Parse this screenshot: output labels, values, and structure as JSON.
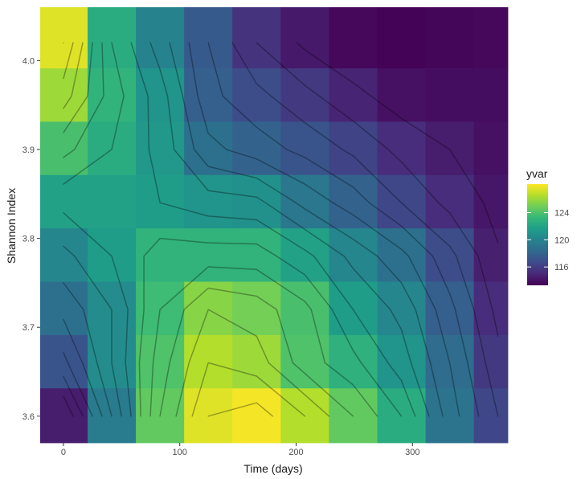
{
  "chart_data": {
    "type": "heatmap",
    "xlabel": "Time (days)",
    "ylabel": "Shannon Index",
    "x_ticks": [
      0,
      100,
      200,
      300
    ],
    "y_ticks": [
      3.6,
      3.7,
      3.8,
      3.9,
      4.0
    ],
    "xlim": [
      -20,
      382
    ],
    "ylim": [
      3.57,
      4.06
    ],
    "x_centers": [
      0,
      41.5,
      83,
      124.5,
      166,
      207.5,
      249,
      290.5,
      332,
      373.5
    ],
    "y_centers": [
      3.6,
      3.66,
      3.72,
      3.78,
      3.84,
      3.9,
      3.96,
      4.02
    ],
    "x_bin_width": 41.5,
    "y_bin_height": 0.0625,
    "z_rows_top_to_bottom": [
      [
        127.5,
        122.5,
        120.0,
        117.5,
        115.5,
        114.3,
        113.6,
        113.4,
        113.5,
        113.6
      ],
      [
        126.0,
        123.0,
        121.0,
        117.8,
        116.8,
        115.8,
        114.8,
        114.0,
        113.8,
        113.8
      ],
      [
        123.8,
        122.5,
        121.2,
        118.8,
        118.0,
        117.2,
        116.3,
        115.2,
        114.5,
        114.0
      ],
      [
        121.8,
        121.8,
        121.5,
        121.0,
        120.8,
        119.2,
        118.0,
        116.5,
        115.2,
        114.2
      ],
      [
        120.2,
        121.5,
        123.0,
        123.0,
        123.0,
        121.8,
        120.2,
        118.8,
        116.8,
        114.6
      ],
      [
        118.8,
        120.5,
        123.5,
        125.5,
        125.0,
        123.8,
        121.5,
        120.2,
        117.8,
        115.2
      ],
      [
        117.2,
        120.5,
        124.0,
        126.5,
        126.0,
        124.0,
        122.8,
        121.0,
        118.5,
        115.8
      ],
      [
        114.5,
        119.5,
        124.5,
        127.5,
        128.0,
        126.5,
        124.5,
        122.5,
        119.0,
        116.5
      ]
    ],
    "colorbar": {
      "title": "yvar",
      "ticks": [
        116,
        120,
        124
      ],
      "min": 113.3,
      "max": 128.2
    },
    "palette": [
      "#440154",
      "#482878",
      "#3e4989",
      "#31688e",
      "#26828e",
      "#1f9e89",
      "#35b779",
      "#6ece58",
      "#b5de2b",
      "#fde725"
    ]
  }
}
